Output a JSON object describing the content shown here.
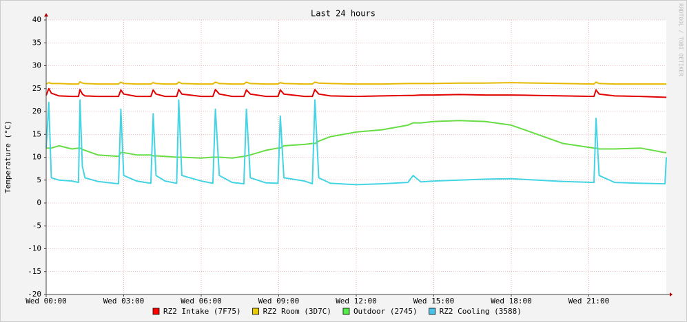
{
  "chart_data": {
    "type": "line",
    "title": "Last 24 hours",
    "y_label": "Temperature (°C)",
    "watermark": "RRDTOOL / TOBI OETIKER",
    "x": [
      0,
      0.1,
      0.2,
      0.5,
      1.0,
      1.25,
      1.31,
      1.4,
      1.5,
      2.0,
      2.8,
      2.89,
      3.0,
      3.5,
      4.05,
      4.14,
      4.25,
      4.6,
      5.05,
      5.13,
      5.25,
      6.0,
      6.45,
      6.55,
      6.7,
      7.2,
      7.65,
      7.75,
      7.9,
      8.5,
      8.97,
      9.06,
      9.2,
      10.0,
      10.3,
      10.4,
      10.55,
      11.0,
      12,
      13,
      14,
      14.2,
      14.5,
      15,
      16,
      17,
      18,
      19,
      20,
      21.2,
      21.28,
      21.4,
      22,
      23,
      23.95,
      24
    ],
    "xlim": [
      0,
      24
    ],
    "xticks": [
      {
        "value": 0,
        "label": "Wed 00:00"
      },
      {
        "value": 3,
        "label": "Wed 03:00"
      },
      {
        "value": 6,
        "label": "Wed 06:00"
      },
      {
        "value": 9,
        "label": "Wed 09:00"
      },
      {
        "value": 12,
        "label": "Wed 12:00"
      },
      {
        "value": 15,
        "label": "Wed 15:00"
      },
      {
        "value": 18,
        "label": "Wed 18:00"
      },
      {
        "value": 21,
        "label": "Wed 21:00"
      }
    ],
    "ylim": [
      -20,
      40
    ],
    "yticks": [
      -20,
      -15,
      -10,
      -5,
      0,
      5,
      10,
      15,
      20,
      25,
      30,
      35,
      40
    ],
    "grid": true,
    "series": [
      {
        "name": "RZ2 Intake (7F75)",
        "color": "#e00000",
        "legend_color": "#ff0000",
        "values": [
          23.5,
          25,
          24,
          23.4,
          23.3,
          23.3,
          24.8,
          23.8,
          23.4,
          23.3,
          23.3,
          24.7,
          23.8,
          23.3,
          23.3,
          24.7,
          23.8,
          23.3,
          23.3,
          24.8,
          23.8,
          23.3,
          23.3,
          24.8,
          23.8,
          23.3,
          23.3,
          24.7,
          23.8,
          23.3,
          23.3,
          24.7,
          23.8,
          23.3,
          23.3,
          24.8,
          23.8,
          23.4,
          23.3,
          23.4,
          23.5,
          23.5,
          23.6,
          23.6,
          23.7,
          23.6,
          23.6,
          23.5,
          23.4,
          23.3,
          24.7,
          23.8,
          23.4,
          23.3,
          23.1,
          23.1
        ]
      },
      {
        "name": "RZ2 Room (3D7C)",
        "color": "#e6b800",
        "legend_color": "#eacc00",
        "values": [
          26,
          26.3,
          26.1,
          26.1,
          26,
          26,
          26.5,
          26.2,
          26.1,
          26,
          26,
          26.4,
          26.1,
          26,
          26,
          26.3,
          26.1,
          26,
          26,
          26.4,
          26.1,
          26,
          26,
          26.4,
          26.1,
          26,
          26,
          26.4,
          26.1,
          26,
          26,
          26.3,
          26.1,
          26,
          26,
          26.4,
          26.2,
          26.1,
          26,
          26,
          26.1,
          26.1,
          26.1,
          26.1,
          26.2,
          26.2,
          26.3,
          26.2,
          26.1,
          26,
          26.4,
          26.1,
          26,
          26,
          26,
          26
        ]
      },
      {
        "name": "Outdoor (2745)",
        "color": "#66dd44",
        "legend_color": "#54ec48",
        "values": [
          12,
          12,
          12,
          12.5,
          11.8,
          12,
          12,
          11.7,
          11.5,
          10.5,
          10.2,
          11,
          11,
          10.5,
          10.5,
          10.3,
          10.3,
          10.2,
          10,
          10,
          10,
          9.8,
          10,
          10,
          10,
          9.8,
          10.2,
          10.3,
          10.5,
          11.5,
          12,
          12,
          12.5,
          12.8,
          13,
          13,
          13.5,
          14.5,
          15.5,
          16,
          17,
          17.5,
          17.5,
          17.8,
          18,
          17.8,
          17,
          15,
          13,
          12,
          12,
          11.8,
          11.8,
          12,
          11,
          11
        ]
      },
      {
        "name": "RZ2 Cooling (3588)",
        "color": "#44d4e4",
        "legend_color": "#48c4ec",
        "values": [
          12,
          22,
          5.5,
          5,
          4.8,
          4.5,
          22.5,
          8,
          5.5,
          4.7,
          4.2,
          20.5,
          6,
          4.8,
          4.3,
          19.5,
          6,
          4.8,
          4.3,
          22.5,
          6,
          4.8,
          4.3,
          20.5,
          6,
          4.5,
          4.2,
          20.5,
          5.5,
          4.4,
          4.3,
          19,
          5.5,
          4.8,
          4.2,
          22.5,
          5.5,
          4.3,
          4,
          4.2,
          4.5,
          6,
          4.6,
          4.8,
          5,
          5.2,
          5.3,
          5,
          4.7,
          4.5,
          18.5,
          6,
          4.5,
          4.3,
          4.2,
          10
        ]
      }
    ]
  }
}
